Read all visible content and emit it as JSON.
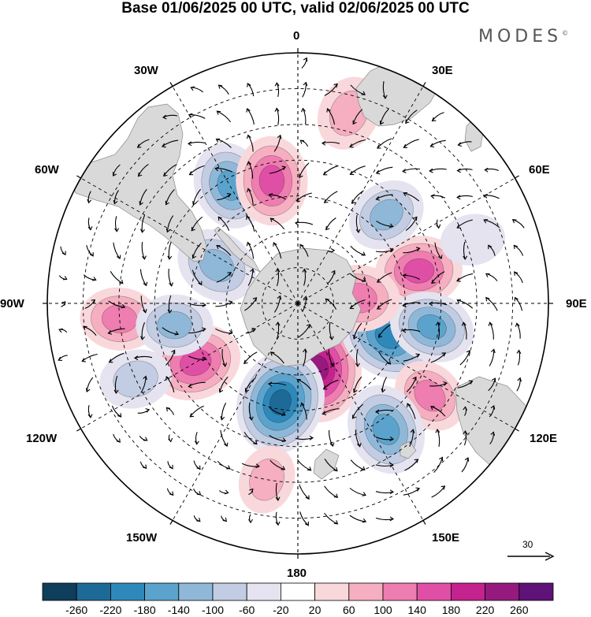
{
  "title": "Base 01/06/2025 00 UTC, valid 02/06/2025 00 UTC",
  "brand": "MODES",
  "brand_mark": "©",
  "meridian_labels": {
    "m0": "0",
    "m30e": "30E",
    "m60e": "60E",
    "m90e": "90E",
    "m120e": "120E",
    "m150e": "150E",
    "m180": "180",
    "m150w": "150W",
    "m120w": "120W",
    "m90w": "90W",
    "m60w": "60W",
    "m30w": "30W"
  },
  "reference_vector": {
    "value": "30"
  },
  "colorbar": {
    "ticks": [
      "-260",
      "-220",
      "-180",
      "-140",
      "-100",
      "-60",
      "-20",
      "20",
      "60",
      "100",
      "140",
      "180",
      "220",
      "260"
    ],
    "colors": [
      "#0f3d5c",
      "#1d6a96",
      "#2f88ba",
      "#5ba3cc",
      "#8fb8d8",
      "#c2cde3",
      "#e4e3ef",
      "#ffffff",
      "#f9d8dc",
      "#f5afc0",
      "#ee7db0",
      "#e04fa6",
      "#c4228d",
      "#961a7e",
      "#5f1278"
    ]
  },
  "colors": {
    "land": "#d9d9d9",
    "grid": "#000000"
  },
  "anomalies": [
    {
      "lon": 163,
      "lat": -71,
      "value": 250
    },
    {
      "lon": -170,
      "lat": -62,
      "value": -240
    },
    {
      "lon": -120,
      "lat": -57,
      "value": 170
    },
    {
      "lon": 110,
      "lat": -63,
      "value": -210
    },
    {
      "lon": 75,
      "lat": -55,
      "value": 150
    },
    {
      "lon": 100,
      "lat": -52,
      "value": -140
    },
    {
      "lon": 125,
      "lat": -45,
      "value": 100
    },
    {
      "lon": 145,
      "lat": -47,
      "value": -170
    },
    {
      "lon": -30,
      "lat": -52,
      "value": -150
    },
    {
      "lon": -12,
      "lat": -55,
      "value": 160
    },
    {
      "lon": -65,
      "lat": -65,
      "value": -130
    },
    {
      "lon": 45,
      "lat": -55,
      "value": -110
    },
    {
      "lon": 85,
      "lat": -73,
      "value": 130
    },
    {
      "lon": 15,
      "lat": -35,
      "value": 90
    },
    {
      "lon": -95,
      "lat": -40,
      "value": 110
    },
    {
      "lon": -100,
      "lat": -55,
      "value": -100
    },
    {
      "lon": -115,
      "lat": -40,
      "value": -80
    },
    {
      "lon": -170,
      "lat": -40,
      "value": 60
    },
    {
      "lon": 70,
      "lat": -38,
      "value": -40
    }
  ]
}
